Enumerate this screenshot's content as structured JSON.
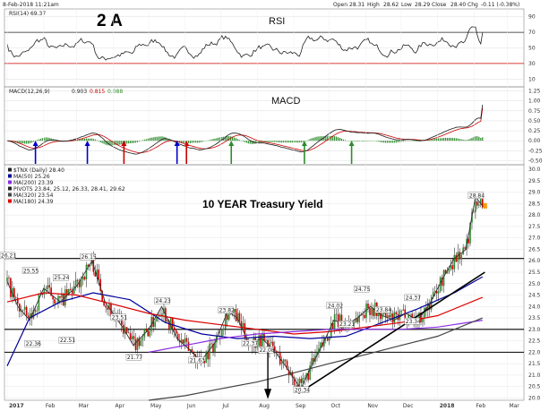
{
  "header": {
    "date": "8-Feb-2018 11:21am",
    "open_label": "Open",
    "open": "28.31",
    "high_label": "High",
    "high": "28.62",
    "low_label": "Low",
    "low": "28.29",
    "close_label": "Close",
    "close": "28.40",
    "chg_label": "Chg",
    "chg": "-0.11 (-0.38%)",
    "figure_label": "2 A"
  },
  "colors": {
    "rsi_line": "#222222",
    "rsi_upper": "#cc0000",
    "macd_line": "#1a1a1a",
    "signal_line": "#cc0000",
    "histogram": "#2e8b2e",
    "ma20": "#0000cc",
    "ma50": "#000099",
    "ma100": "#8a2be2",
    "ma180": "#dd0000",
    "ma320": "#444444",
    "candle_up": "#2e8b2e",
    "candle_down": "#cc0000",
    "trendline": "#000000",
    "last_price": "#ff9900"
  },
  "chart_data": [
    {
      "type": "line",
      "name": "rsi-panel",
      "title": "RSI",
      "legend": "RSI(14) 69.37",
      "y_ticks": [
        "90",
        "70",
        "50",
        "30",
        "10"
      ],
      "ylim": [
        0,
        100
      ],
      "levels": [
        70,
        30
      ],
      "last": 69.37
    },
    {
      "type": "line",
      "name": "macd-panel",
      "title": "MACD",
      "legend": {
        "label": "MACD(12,26,9)",
        "macd": "0.903",
        "signal": "0.815",
        "hist": "0.088"
      },
      "y_ticks": [
        "1.25",
        "1.00",
        "0.75",
        "0.50",
        "0.25",
        "0.00",
        "-0.25",
        "-0.50"
      ],
      "ylim": [
        -0.6,
        1.35
      ],
      "last": {
        "macd": 0.903,
        "signal": 0.815,
        "hist": 0.088
      }
    },
    {
      "type": "line",
      "name": "price-panel",
      "title": "10 YEAR Treasury Yield",
      "legend": [
        {
          "label": "$TNX (Daily) 28.40"
        },
        {
          "label": "MA(50) 25.26"
        },
        {
          "label": "MA(200) 23.39"
        },
        {
          "label": "PIVOTS 23.84, 25.12, 26.33, 28.41, 29.62"
        },
        {
          "label": "MA(320) 23.54"
        },
        {
          "label": "MA(180) 24.39"
        }
      ],
      "y_ticks": [
        "30.0",
        "29.5",
        "29.0",
        "28.5",
        "28.0",
        "27.5",
        "27.0",
        "26.5",
        "26.0",
        "25.5",
        "25.0",
        "24.5",
        "24.0",
        "23.5",
        "23.0",
        "22.5",
        "22.0",
        "21.5",
        "21.0",
        "20.5",
        "20.0"
      ],
      "ylim": [
        19.9,
        30.2
      ],
      "x_ticks": [
        "2017",
        "Feb",
        "Mar",
        "Apr",
        "May",
        "Jun",
        "Jul",
        "Aug",
        "Sep",
        "Oct",
        "Nov",
        "Dec",
        "2018",
        "Feb",
        "Mar"
      ],
      "horizontal_lines": [
        26.1,
        23.0,
        22.0
      ],
      "annotations": [
        {
          "text": "26.21",
          "x": "2017-01-01",
          "y": 26.21
        },
        {
          "text": "25.55",
          "x": "2017-01-20",
          "y": 25.55
        },
        {
          "text": "25.24",
          "x": "2017-02-15",
          "y": 25.24
        },
        {
          "text": "26.15",
          "x": "2017-03-10",
          "y": 26.15
        },
        {
          "text": "22.36",
          "x": "2017-01-22",
          "y": 22.36
        },
        {
          "text": "22.51",
          "x": "2017-02-20",
          "y": 22.51
        },
        {
          "text": "23.51",
          "x": "2017-04-05",
          "y": 23.51
        },
        {
          "text": "24.23",
          "x": "2017-05-12",
          "y": 24.23
        },
        {
          "text": "21.77",
          "x": "2017-04-18",
          "y": 21.77
        },
        {
          "text": "21.63",
          "x": "2017-06-10",
          "y": 21.63
        },
        {
          "text": "23.82",
          "x": "2017-07-05",
          "y": 23.82
        },
        {
          "text": "22.37",
          "x": "2017-07-25",
          "y": 22.37
        },
        {
          "text": "22.08",
          "x": "2017-08-08",
          "y": 22.08
        },
        {
          "text": "20.34",
          "x": "2017-09-07",
          "y": 20.34
        },
        {
          "text": "24.02",
          "x": "2017-10-05",
          "y": 24.02
        },
        {
          "text": "24.75",
          "x": "2017-10-28",
          "y": 24.75
        },
        {
          "text": "23.21",
          "x": "2017-10-15",
          "y": 23.21
        },
        {
          "text": "23.84",
          "x": "2017-11-15",
          "y": 23.84
        },
        {
          "text": "24.37",
          "x": "2017-12-10",
          "y": 24.37
        },
        {
          "text": "23.34",
          "x": "2017-12-10",
          "y": 23.34
        },
        {
          "text": "28.84",
          "x": "2018-02-02",
          "y": 28.84
        }
      ],
      "series": [
        {
          "name": "TNX",
          "x": [
            "2017-01-01",
            "2017-01-10",
            "2017-01-20",
            "2017-02-01",
            "2017-02-15",
            "2017-03-01",
            "2017-03-14",
            "2017-03-25",
            "2017-04-10",
            "2017-04-18",
            "2017-05-01",
            "2017-05-12",
            "2017-05-25",
            "2017-06-05",
            "2017-06-14",
            "2017-06-26",
            "2017-07-07",
            "2017-07-15",
            "2017-07-25",
            "2017-08-05",
            "2017-08-15",
            "2017-08-25",
            "2017-09-07",
            "2017-09-15",
            "2017-09-25",
            "2017-10-05",
            "2017-10-15",
            "2017-10-25",
            "2017-11-05",
            "2017-11-15",
            "2017-11-25",
            "2017-12-05",
            "2017-12-15",
            "2017-12-25",
            "2018-01-05",
            "2018-01-15",
            "2018-01-25",
            "2018-02-02",
            "2018-02-08"
          ],
          "values": [
            25.1,
            24.0,
            23.4,
            24.8,
            24.2,
            24.9,
            26.0,
            24.2,
            23.0,
            22.3,
            23.0,
            24.0,
            22.6,
            22.1,
            21.6,
            22.4,
            23.8,
            23.5,
            22.4,
            22.6,
            22.1,
            21.4,
            20.4,
            21.3,
            22.3,
            23.4,
            23.2,
            23.5,
            24.0,
            23.6,
            23.4,
            23.7,
            23.4,
            24.1,
            25.2,
            26.1,
            26.5,
            28.8,
            28.4
          ]
        },
        {
          "name": "MA(50)",
          "x": [
            "2017-01-01",
            "2017-01-20",
            "2017-02-15",
            "2017-03-15",
            "2017-04-15",
            "2017-05-15",
            "2017-06-15",
            "2017-07-15",
            "2017-08-15",
            "2017-09-15",
            "2017-10-15",
            "2017-11-15",
            "2017-12-15",
            "2018-01-15",
            "2018-02-08"
          ],
          "values": [
            21.4,
            23.5,
            24.2,
            24.6,
            24.3,
            23.3,
            22.8,
            22.6,
            22.7,
            22.6,
            22.7,
            23.3,
            23.9,
            24.6,
            25.3
          ]
        },
        {
          "name": "MA(180)",
          "x": [
            "2017-01-01",
            "2017-02-01",
            "2017-03-01",
            "2017-04-01",
            "2017-05-01",
            "2017-06-01",
            "2017-07-01",
            "2017-08-01",
            "2017-09-01",
            "2017-10-01",
            "2017-11-01",
            "2017-12-01",
            "2018-01-01",
            "2018-02-08"
          ],
          "values": [
            24.2,
            24.6,
            24.5,
            24.1,
            23.7,
            23.4,
            23.2,
            23.0,
            22.8,
            22.9,
            23.1,
            23.3,
            23.6,
            24.4
          ]
        },
        {
          "name": "MA(200)",
          "x": [
            "2017-05-01",
            "2017-06-01",
            "2017-07-01",
            "2017-08-01",
            "2017-09-01",
            "2017-10-01",
            "2017-11-01",
            "2017-12-01",
            "2018-01-01",
            "2018-02-08"
          ],
          "values": [
            22.0,
            22.3,
            22.6,
            22.8,
            22.9,
            23.0,
            23.0,
            23.0,
            23.1,
            23.4
          ]
        },
        {
          "name": "MA(320)",
          "x": [
            "2017-05-01",
            "2017-06-01",
            "2017-07-01",
            "2017-08-01",
            "2017-09-01",
            "2017-10-01",
            "2017-11-01",
            "2017-12-01",
            "2018-01-01",
            "2018-02-08"
          ],
          "values": [
            19.9,
            20.1,
            20.4,
            20.7,
            21.1,
            21.5,
            21.9,
            22.3,
            22.7,
            23.5
          ]
        }
      ]
    }
  ]
}
